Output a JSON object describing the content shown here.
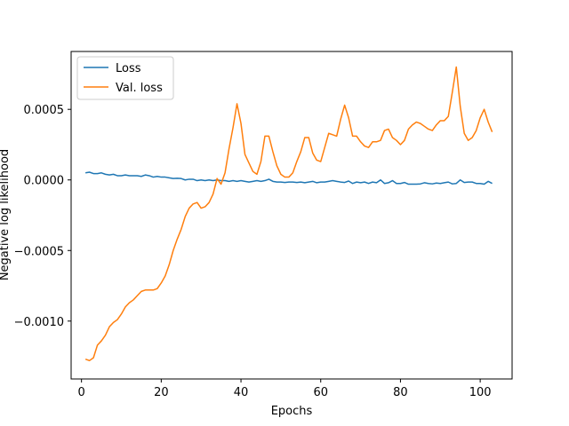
{
  "chart_data": {
    "type": "line",
    "title": "",
    "xlabel": "Epochs",
    "ylabel": "Negative log likelihood",
    "xlim": [
      -2.6,
      108.0
    ],
    "ylim": [
      -0.00141,
      0.00091
    ],
    "xticks": [
      0,
      20,
      40,
      60,
      80,
      100
    ],
    "yticks": [
      -0.001,
      -0.0005,
      0.0,
      0.0005
    ],
    "xtick_labels": [
      "0",
      "20",
      "40",
      "60",
      "80",
      "100"
    ],
    "ytick_labels": [
      "−0.0010",
      "−0.0005",
      "0.0000",
      "0.0005"
    ],
    "grid": false,
    "legend_position": "top-left",
    "series": [
      {
        "name": "Loss",
        "color": "#1f77b4",
        "x": [
          1,
          2,
          3,
          4,
          5,
          6,
          7,
          8,
          9,
          10,
          11,
          12,
          13,
          14,
          15,
          16,
          17,
          18,
          19,
          20,
          21,
          22,
          23,
          24,
          25,
          26,
          27,
          28,
          29,
          30,
          31,
          32,
          33,
          34,
          35,
          36,
          37,
          38,
          39,
          40,
          41,
          42,
          43,
          44,
          45,
          46,
          47,
          48,
          49,
          50,
          51,
          52,
          53,
          54,
          55,
          56,
          57,
          58,
          59,
          60,
          61,
          62,
          63,
          64,
          65,
          66,
          67,
          68,
          69,
          70,
          71,
          72,
          73,
          74,
          75,
          76,
          77,
          78,
          79,
          80,
          81,
          82,
          83,
          84,
          85,
          86,
          87,
          88,
          89,
          90,
          91,
          92,
          93,
          94,
          95,
          96,
          97,
          98,
          99,
          100,
          101,
          102,
          103
        ],
        "y": [
          5e-05,
          5.5e-05,
          4.5e-05,
          4.5e-05,
          5e-05,
          4e-05,
          3.5e-05,
          4e-05,
          3e-05,
          3e-05,
          3.5e-05,
          3e-05,
          3e-05,
          3e-05,
          2.5e-05,
          3.5e-05,
          3e-05,
          2e-05,
          2.5e-05,
          2e-05,
          2e-05,
          1.5e-05,
          1e-05,
          1.2e-05,
          1e-05,
          0.0,
          5e-06,
          5e-06,
          -5e-06,
          0.0,
          -5e-06,
          0.0,
          -5e-06,
          0.0,
          -5e-06,
          -5e-06,
          -1e-05,
          -5e-06,
          -1e-05,
          -5e-06,
          -1e-05,
          -1.5e-05,
          -1e-05,
          -5e-06,
          -1e-05,
          -5e-06,
          5e-06,
          -1e-05,
          -1.5e-05,
          -1.5e-05,
          -1.8e-05,
          -1.5e-05,
          -1.5e-05,
          -1.8e-05,
          -1.5e-05,
          -2e-05,
          -1.5e-05,
          -1e-05,
          -2e-05,
          -1.5e-05,
          -1.5e-05,
          -1e-05,
          -5e-06,
          -1e-05,
          -1.5e-05,
          -1.8e-05,
          -8e-06,
          -2.5e-05,
          -1.5e-05,
          -2e-05,
          -1.5e-05,
          -2.5e-05,
          -1.5e-05,
          -2e-05,
          0.0,
          -2.5e-05,
          -2e-05,
          -5e-06,
          -2.5e-05,
          -2.5e-05,
          -1.8e-05,
          -3e-05,
          -3e-05,
          -3e-05,
          -2.8e-05,
          -2e-05,
          -2.5e-05,
          -2.8e-05,
          -2.2e-05,
          -2.5e-05,
          -2e-05,
          -1.5e-05,
          -2.8e-05,
          -2.5e-05,
          0.0,
          -1.8e-05,
          -1.5e-05,
          -1.5e-05,
          -2.5e-05,
          -2.5e-05,
          -3e-05,
          -1e-05,
          -2.5e-05
        ]
      },
      {
        "name": "Val. loss",
        "color": "#ff7f0e",
        "x": [
          1,
          2,
          3,
          4,
          5,
          6,
          7,
          8,
          9,
          10,
          11,
          12,
          13,
          14,
          15,
          16,
          17,
          18,
          19,
          20,
          21,
          22,
          23,
          24,
          25,
          26,
          27,
          28,
          29,
          30,
          31,
          32,
          33,
          34,
          35,
          36,
          37,
          38,
          39,
          40,
          41,
          42,
          43,
          44,
          45,
          46,
          47,
          48,
          49,
          50,
          51,
          52,
          53,
          54,
          55,
          56,
          57,
          58,
          59,
          60,
          61,
          62,
          63,
          64,
          65,
          66,
          67,
          68,
          69,
          70,
          71,
          72,
          73,
          74,
          75,
          76,
          77,
          78,
          79,
          80,
          81,
          82,
          83,
          84,
          85,
          86,
          87,
          88,
          89,
          90,
          91,
          92,
          93,
          94,
          95,
          96,
          97,
          98,
          99,
          100,
          101,
          102,
          103
        ],
        "y": [
          -0.00127,
          -0.00128,
          -0.00126,
          -0.00117,
          -0.00114,
          -0.0011,
          -0.00104,
          -0.00101,
          -0.00099,
          -0.00095,
          -0.0009,
          -0.00087,
          -0.00085,
          -0.00082,
          -0.00079,
          -0.00078,
          -0.00078,
          -0.00078,
          -0.00077,
          -0.00073,
          -0.00068,
          -0.0006,
          -0.0005,
          -0.00042,
          -0.00035,
          -0.00026,
          -0.0002,
          -0.00017,
          -0.00016,
          -0.0002,
          -0.00019,
          -0.00016,
          -0.0001,
          1e-05,
          -3e-05,
          5e-05,
          0.00022,
          0.00037,
          0.00054,
          0.0004,
          0.00018,
          0.00012,
          6e-05,
          4e-05,
          0.00013,
          0.00031,
          0.00031,
          0.0002,
          0.0001,
          4e-05,
          2e-05,
          2e-05,
          5e-05,
          0.00013,
          0.0002,
          0.0003,
          0.0003,
          0.00019,
          0.00014,
          0.00013,
          0.00023,
          0.00033,
          0.00032,
          0.00031,
          0.00043,
          0.00053,
          0.00044,
          0.00031,
          0.00031,
          0.00027,
          0.00024,
          0.00023,
          0.00027,
          0.00027,
          0.00028,
          0.00035,
          0.00036,
          0.0003,
          0.00028,
          0.00025,
          0.00028,
          0.00036,
          0.00039,
          0.00041,
          0.0004,
          0.00038,
          0.00036,
          0.00035,
          0.00039,
          0.00042,
          0.00042,
          0.00045,
          0.00062,
          0.0008,
          0.00052,
          0.00033,
          0.00028,
          0.0003,
          0.00035,
          0.00044,
          0.0005,
          0.00041,
          0.00034
        ]
      }
    ]
  }
}
